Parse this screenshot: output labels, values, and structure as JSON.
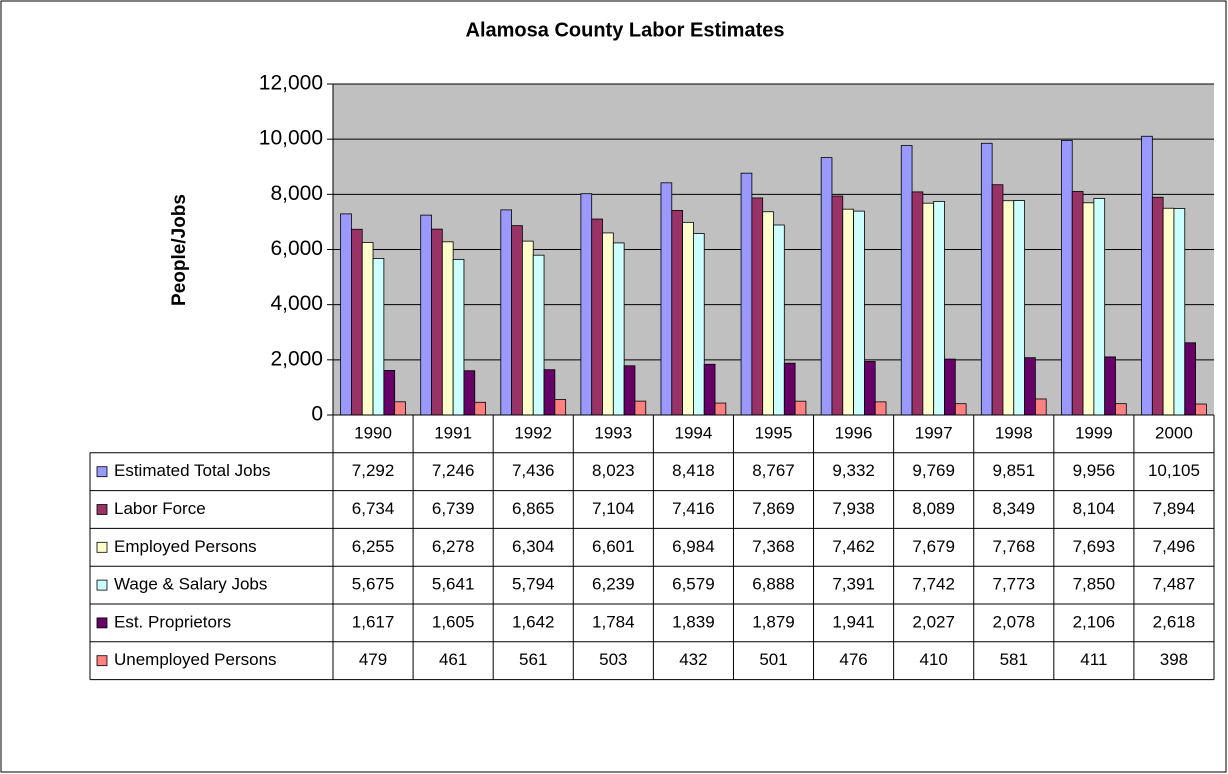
{
  "chart_data": {
    "type": "bar",
    "title": "Alamosa County Labor Estimates",
    "y_label": "People/Jobs",
    "categories": [
      "1990",
      "1991",
      "1992",
      "1993",
      "1994",
      "1995",
      "1996",
      "1997",
      "1998",
      "1999",
      "2000"
    ],
    "ylim": [
      0,
      12000
    ],
    "yticks": [
      0,
      {
        "value": 2000,
        "label": "2,000"
      },
      {
        "value": 4000,
        "label": "4,000"
      },
      {
        "value": 6000,
        "label": "6,000"
      },
      {
        "value": 8000,
        "label": "8,000"
      },
      {
        "value": 10000,
        "label": "10,000"
      },
      {
        "value": 12000,
        "label": "12,000"
      }
    ],
    "grid": true,
    "series": [
      {
        "name": "Estimated Total Jobs",
        "color": "#9999ff",
        "values": [
          7292,
          7246,
          7436,
          8023,
          8418,
          8767,
          9332,
          9769,
          9851,
          9956,
          10105
        ],
        "value_labels": [
          "7,292",
          "7,246",
          "7,436",
          "8,023",
          "8,418",
          "8,767",
          "9,332",
          "9,769",
          "9,851",
          "9,956",
          "10,105"
        ]
      },
      {
        "name": "Labor Force",
        "color": "#993366",
        "values": [
          6734,
          6739,
          6865,
          7104,
          7416,
          7869,
          7938,
          8089,
          8349,
          8104,
          7894
        ],
        "value_labels": [
          "6,734",
          "6,739",
          "6,865",
          "7,104",
          "7,416",
          "7,869",
          "7,938",
          "8,089",
          "8,349",
          "8,104",
          "7,894"
        ]
      },
      {
        "name": "Employed Persons",
        "color": "#ffffcc",
        "values": [
          6255,
          6278,
          6304,
          6601,
          6984,
          7368,
          7462,
          7679,
          7768,
          7693,
          7496
        ],
        "value_labels": [
          "6,255",
          "6,278",
          "6,304",
          "6,601",
          "6,984",
          "7,368",
          "7,462",
          "7,679",
          "7,768",
          "7,693",
          "7,496"
        ]
      },
      {
        "name": "Wage & Salary Jobs",
        "color": "#ccffff",
        "values": [
          5675,
          5641,
          5794,
          6239,
          6579,
          6888,
          7391,
          7742,
          7773,
          7850,
          7487
        ],
        "value_labels": [
          "5,675",
          "5,641",
          "5,794",
          "6,239",
          "6,579",
          "6,888",
          "7,391",
          "7,742",
          "7,773",
          "7,850",
          "7,487"
        ]
      },
      {
        "name": "Est. Proprietors",
        "color": "#660066",
        "values": [
          1617,
          1605,
          1642,
          1784,
          1839,
          1879,
          1941,
          2027,
          2078,
          2106,
          2618
        ],
        "value_labels": [
          "1,617",
          "1,605",
          "1,642",
          "1,784",
          "1,839",
          "1,879",
          "1,941",
          "2,027",
          "2,078",
          "2,106",
          "2,618"
        ]
      },
      {
        "name": "Unemployed Persons",
        "color": "#ff8080",
        "values": [
          479,
          461,
          561,
          503,
          432,
          501,
          476,
          410,
          581,
          411,
          398
        ]
      }
    ]
  }
}
